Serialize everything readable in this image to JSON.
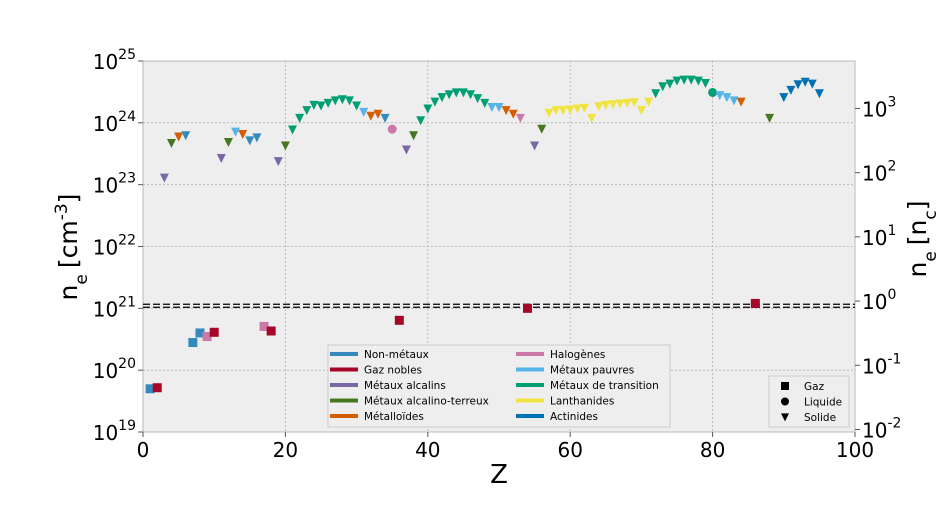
{
  "chart_data": {
    "type": "scatter",
    "xlabel": "Z",
    "ylabel": {
      "base": "n",
      "sub": "e",
      "unit": "[cm",
      "sup": "-3",
      "close": "]"
    },
    "y2label": {
      "base": "n",
      "sub": "e",
      "unit": "[n",
      "unitsub": "c",
      "close": "]"
    },
    "xlim": [
      0,
      100
    ],
    "ylim": [
      1e+19,
      1e+25
    ],
    "y2lim": [
      0.00913,
      5480
    ],
    "yscale": "log",
    "grid": true,
    "x_ticks": [
      "0",
      "20",
      "40",
      "60",
      "80",
      "100"
    ],
    "y_ticks": [
      {
        "base": "10",
        "exp": "19"
      },
      {
        "base": "10",
        "exp": "20"
      },
      {
        "base": "10",
        "exp": "21"
      },
      {
        "base": "10",
        "exp": "22"
      },
      {
        "base": "10",
        "exp": "23"
      },
      {
        "base": "10",
        "exp": "24"
      },
      {
        "base": "10",
        "exp": "25"
      }
    ],
    "y2_ticks": [
      {
        "value": 0.01,
        "base": "10",
        "exp": "-2"
      },
      {
        "value": 0.1,
        "base": "10",
        "exp": "-1"
      },
      {
        "value": 1,
        "base": "10",
        "exp": "0"
      },
      {
        "value": 10,
        "base": "10",
        "exp": "1"
      },
      {
        "value": 100,
        "base": "10",
        "exp": "2"
      },
      {
        "value": 1000,
        "base": "10",
        "exp": "3"
      }
    ],
    "reference_line": {
      "y": 1.1e+21,
      "style": "dashed"
    },
    "legend_categories": {
      "placement": "bottom-center",
      "entries": [
        {
          "label": "Non-métaux",
          "color": "#348ABD"
        },
        {
          "label": "Gaz nobles",
          "color": "#A60628"
        },
        {
          "label": "Métaux alcalins",
          "color": "#7A68A6"
        },
        {
          "label": "Métaux alcalino-terreux",
          "color": "#467821"
        },
        {
          "label": "Métalloïdes",
          "color": "#D55E00"
        },
        {
          "label": "Halogènes",
          "color": "#CC79A7"
        },
        {
          "label": "Métaux pauvres",
          "color": "#56B4E9"
        },
        {
          "label": "Métaux de transition",
          "color": "#009E73"
        },
        {
          "label": "Lanthanides",
          "color": "#F0E442"
        },
        {
          "label": "Actinides",
          "color": "#0072B2"
        }
      ]
    },
    "legend_states": {
      "placement": "bottom-right",
      "entries": [
        {
          "label": "Gaz",
          "marker": "square"
        },
        {
          "label": "Liquide",
          "marker": "circle"
        },
        {
          "label": "Solide",
          "marker": "triangle"
        }
      ]
    },
    "points": [
      {
        "z": 1,
        "ne": 5e+19,
        "cat": 0,
        "m": "s"
      },
      {
        "z": 2,
        "ne": 5.2e+19,
        "cat": 1,
        "m": "s"
      },
      {
        "z": 3,
        "ne": 1.3e+23,
        "cat": 2,
        "m": "v"
      },
      {
        "z": 4,
        "ne": 4.7e+23,
        "cat": 3,
        "m": "v"
      },
      {
        "z": 5,
        "ne": 6e+23,
        "cat": 4,
        "m": "v"
      },
      {
        "z": 6,
        "ne": 6.3e+23,
        "cat": 0,
        "m": "v"
      },
      {
        "z": 7,
        "ne": 2.8e+20,
        "cat": 0,
        "m": "s"
      },
      {
        "z": 8,
        "ne": 4e+20,
        "cat": 0,
        "m": "s"
      },
      {
        "z": 9,
        "ne": 3.5e+20,
        "cat": 5,
        "m": "s"
      },
      {
        "z": 10,
        "ne": 4.1e+20,
        "cat": 1,
        "m": "s"
      },
      {
        "z": 11,
        "ne": 2.7e+23,
        "cat": 2,
        "m": "v"
      },
      {
        "z": 12,
        "ne": 4.9e+23,
        "cat": 3,
        "m": "v"
      },
      {
        "z": 13,
        "ne": 7.2e+23,
        "cat": 6,
        "m": "v"
      },
      {
        "z": 14,
        "ne": 6.6e+23,
        "cat": 4,
        "m": "v"
      },
      {
        "z": 15,
        "ne": 5.2e+23,
        "cat": 0,
        "m": "v"
      },
      {
        "z": 16,
        "ne": 5.8e+23,
        "cat": 0,
        "m": "v"
      },
      {
        "z": 17,
        "ne": 5.1e+20,
        "cat": 5,
        "m": "s"
      },
      {
        "z": 18,
        "ne": 4.3e+20,
        "cat": 1,
        "m": "s"
      },
      {
        "z": 19,
        "ne": 2.4e+23,
        "cat": 2,
        "m": "v"
      },
      {
        "z": 20,
        "ne": 4.3e+23,
        "cat": 3,
        "m": "v"
      },
      {
        "z": 21,
        "ne": 7.8e+23,
        "cat": 7,
        "m": "v"
      },
      {
        "z": 22,
        "ne": 1.2e+24,
        "cat": 7,
        "m": "v"
      },
      {
        "z": 23,
        "ne": 1.6e+24,
        "cat": 7,
        "m": "v"
      },
      {
        "z": 24,
        "ne": 1.95e+24,
        "cat": 7,
        "m": "v"
      },
      {
        "z": 25,
        "ne": 1.9e+24,
        "cat": 7,
        "m": "v"
      },
      {
        "z": 26,
        "ne": 2.1e+24,
        "cat": 7,
        "m": "v"
      },
      {
        "z": 27,
        "ne": 2.3e+24,
        "cat": 7,
        "m": "v"
      },
      {
        "z": 28,
        "ne": 2.4e+24,
        "cat": 7,
        "m": "v"
      },
      {
        "z": 29,
        "ne": 2.3e+24,
        "cat": 7,
        "m": "v"
      },
      {
        "z": 30,
        "ne": 1.9e+24,
        "cat": 7,
        "m": "v"
      },
      {
        "z": 31,
        "ne": 1.5e+24,
        "cat": 6,
        "m": "v"
      },
      {
        "z": 32,
        "ne": 1.3e+24,
        "cat": 4,
        "m": "v"
      },
      {
        "z": 33,
        "ne": 1.4e+24,
        "cat": 4,
        "m": "v"
      },
      {
        "z": 34,
        "ne": 1.2e+24,
        "cat": 0,
        "m": "v"
      },
      {
        "z": 35,
        "ne": 7.9e+23,
        "cat": 5,
        "m": "o"
      },
      {
        "z": 36,
        "ne": 6.4e+20,
        "cat": 1,
        "m": "s"
      },
      {
        "z": 37,
        "ne": 3.7e+23,
        "cat": 2,
        "m": "v"
      },
      {
        "z": 38,
        "ne": 6.3e+23,
        "cat": 3,
        "m": "v"
      },
      {
        "z": 39,
        "ne": 1.1e+24,
        "cat": 7,
        "m": "v"
      },
      {
        "z": 40,
        "ne": 1.7e+24,
        "cat": 7,
        "m": "v"
      },
      {
        "z": 41,
        "ne": 2.2e+24,
        "cat": 7,
        "m": "v"
      },
      {
        "z": 42,
        "ne": 2.6e+24,
        "cat": 7,
        "m": "v"
      },
      {
        "z": 43,
        "ne": 2.9e+24,
        "cat": 7,
        "m": "v"
      },
      {
        "z": 44,
        "ne": 3.1e+24,
        "cat": 7,
        "m": "v"
      },
      {
        "z": 45,
        "ne": 3.1e+24,
        "cat": 7,
        "m": "v"
      },
      {
        "z": 46,
        "ne": 2.9e+24,
        "cat": 7,
        "m": "v"
      },
      {
        "z": 47,
        "ne": 2.5e+24,
        "cat": 7,
        "m": "v"
      },
      {
        "z": 48,
        "ne": 2.1e+24,
        "cat": 7,
        "m": "v"
      },
      {
        "z": 49,
        "ne": 1.8e+24,
        "cat": 6,
        "m": "v"
      },
      {
        "z": 50,
        "ne": 1.8e+24,
        "cat": 6,
        "m": "v"
      },
      {
        "z": 51,
        "ne": 1.6e+24,
        "cat": 4,
        "m": "v"
      },
      {
        "z": 52,
        "ne": 1.4e+24,
        "cat": 4,
        "m": "v"
      },
      {
        "z": 53,
        "ne": 1.2e+24,
        "cat": 5,
        "m": "v"
      },
      {
        "z": 54,
        "ne": 1e+21,
        "cat": 1,
        "m": "s"
      },
      {
        "z": 55,
        "ne": 4.3e+23,
        "cat": 2,
        "m": "v"
      },
      {
        "z": 56,
        "ne": 8e+23,
        "cat": 3,
        "m": "v"
      },
      {
        "z": 57,
        "ne": 1.45e+24,
        "cat": 8,
        "m": "v"
      },
      {
        "z": 58,
        "ne": 1.6e+24,
        "cat": 8,
        "m": "v"
      },
      {
        "z": 59,
        "ne": 1.6e+24,
        "cat": 8,
        "m": "v"
      },
      {
        "z": 60,
        "ne": 1.65e+24,
        "cat": 8,
        "m": "v"
      },
      {
        "z": 61,
        "ne": 1.7e+24,
        "cat": 8,
        "m": "v"
      },
      {
        "z": 62,
        "ne": 1.75e+24,
        "cat": 8,
        "m": "v"
      },
      {
        "z": 63,
        "ne": 1.2e+24,
        "cat": 8,
        "m": "v"
      },
      {
        "z": 64,
        "ne": 1.85e+24,
        "cat": 8,
        "m": "v"
      },
      {
        "z": 65,
        "ne": 1.95e+24,
        "cat": 8,
        "m": "v"
      },
      {
        "z": 66,
        "ne": 2e+24,
        "cat": 8,
        "m": "v"
      },
      {
        "z": 67,
        "ne": 2.05e+24,
        "cat": 8,
        "m": "v"
      },
      {
        "z": 68,
        "ne": 2.1e+24,
        "cat": 8,
        "m": "v"
      },
      {
        "z": 69,
        "ne": 2.15e+24,
        "cat": 8,
        "m": "v"
      },
      {
        "z": 70,
        "ne": 1.6e+24,
        "cat": 8,
        "m": "v"
      },
      {
        "z": 71,
        "ne": 2.2e+24,
        "cat": 8,
        "m": "v"
      },
      {
        "z": 72,
        "ne": 3e+24,
        "cat": 7,
        "m": "v"
      },
      {
        "z": 73,
        "ne": 3.9e+24,
        "cat": 7,
        "m": "v"
      },
      {
        "z": 74,
        "ne": 4.3e+24,
        "cat": 7,
        "m": "v"
      },
      {
        "z": 75,
        "ne": 4.8e+24,
        "cat": 7,
        "m": "v"
      },
      {
        "z": 76,
        "ne": 5e+24,
        "cat": 7,
        "m": "v"
      },
      {
        "z": 77,
        "ne": 5e+24,
        "cat": 7,
        "m": "v"
      },
      {
        "z": 78,
        "ne": 4.8e+24,
        "cat": 7,
        "m": "v"
      },
      {
        "z": 79,
        "ne": 4.4e+24,
        "cat": 7,
        "m": "v"
      },
      {
        "z": 80,
        "ne": 3.1e+24,
        "cat": 7,
        "m": "o"
      },
      {
        "z": 81,
        "ne": 2.8e+24,
        "cat": 6,
        "m": "v"
      },
      {
        "z": 82,
        "ne": 2.6e+24,
        "cat": 6,
        "m": "v"
      },
      {
        "z": 83,
        "ne": 2.3e+24,
        "cat": 6,
        "m": "v"
      },
      {
        "z": 84,
        "ne": 2.2e+24,
        "cat": 4,
        "m": "v"
      },
      {
        "z": 86,
        "ne": 1.2e+21,
        "cat": 1,
        "m": "s"
      },
      {
        "z": 88,
        "ne": 1.2e+24,
        "cat": 3,
        "m": "v"
      },
      {
        "z": 90,
        "ne": 2.6e+24,
        "cat": 9,
        "m": "v"
      },
      {
        "z": 91,
        "ne": 3.4e+24,
        "cat": 9,
        "m": "v"
      },
      {
        "z": 92,
        "ne": 4.2e+24,
        "cat": 9,
        "m": "v"
      },
      {
        "z": 93,
        "ne": 4.6e+24,
        "cat": 9,
        "m": "v"
      },
      {
        "z": 94,
        "ne": 4.3e+24,
        "cat": 9,
        "m": "v"
      },
      {
        "z": 95,
        "ne": 3e+24,
        "cat": 9,
        "m": "v"
      }
    ]
  }
}
